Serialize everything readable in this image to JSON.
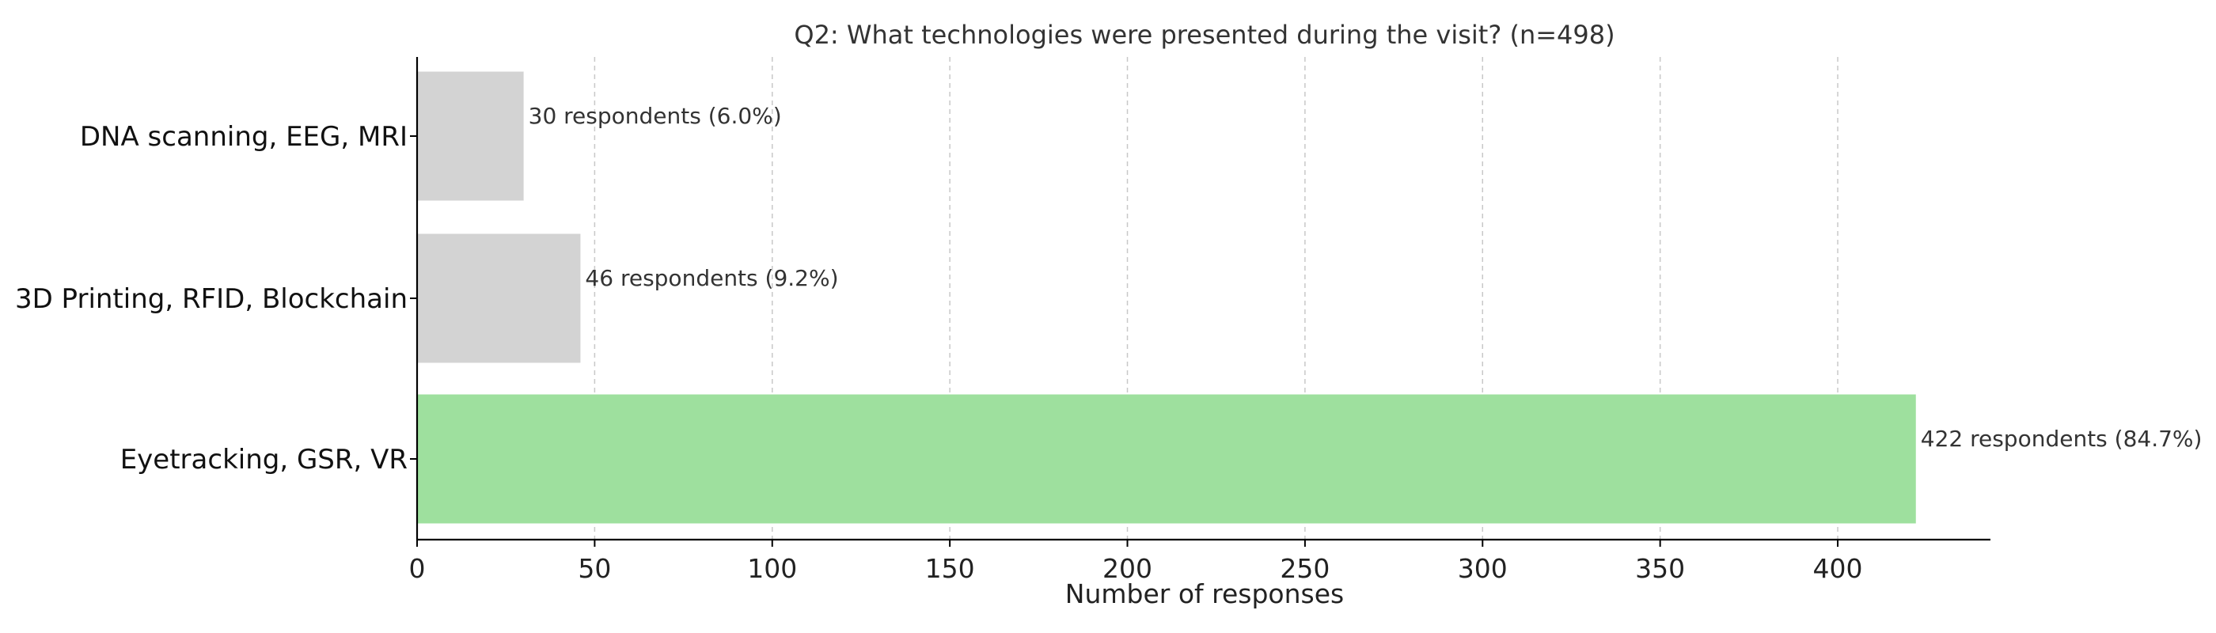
{
  "chart_data": {
    "type": "bar",
    "orientation": "horizontal",
    "title": "Q2: What technologies were presented during the visit? (n=498)",
    "xlabel": "Number of responses",
    "ylabel": "",
    "categories": [
      "DNA scanning, EEG, MRI",
      "3D Printing, RFID, Blockchain",
      "Eyetracking, GSR, VR"
    ],
    "values": [
      30,
      46,
      422
    ],
    "data_labels": [
      "30 respondents (6.0%)",
      "46 respondents (9.2%)",
      "422 respondents (84.7%)"
    ],
    "bar_colors": [
      "#d3d3d3",
      "#d3d3d3",
      "#9ee09e"
    ],
    "xlim": [
      0,
      443
    ],
    "xticks": [
      0,
      50,
      100,
      150,
      200,
      250,
      300,
      350,
      400
    ],
    "grid": "vertical dashed",
    "legend": "none"
  }
}
